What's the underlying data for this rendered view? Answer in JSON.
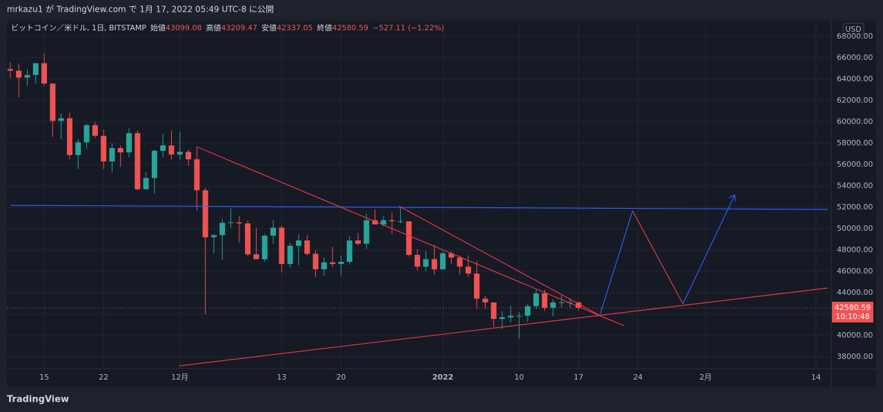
{
  "header": {
    "published": "mrkazu1 が TradingView.com で 1月 17, 2022 05:49 UTC-8 に公開"
  },
  "legend": {
    "symbol": "ビットコイン／米ドル, 1日, BITSTAMP",
    "open_label": "始値",
    "open": "43099.08",
    "high_label": "高値",
    "high": "43209.47",
    "low_label": "安値",
    "low": "42337.05",
    "close_label": "終値",
    "close": "42580.59",
    "change": "−527.11 (−1.22%)"
  },
  "currency": "USD",
  "countdown": "10:10:48",
  "footer": "TradingView",
  "chart_data": {
    "type": "candlestick",
    "up_color": "#26a69a",
    "down_color": "#ef5350",
    "grid": true,
    "x": [
      0,
      1,
      2,
      3,
      4,
      5,
      6,
      7,
      8,
      9,
      10,
      11,
      12,
      13,
      14,
      15,
      16,
      17,
      18,
      19,
      20,
      21,
      22,
      23,
      24,
      25,
      26,
      27,
      28,
      29,
      30,
      31,
      32,
      33,
      34,
      35,
      36,
      37,
      38,
      39,
      40,
      41,
      42,
      43,
      44,
      45,
      46,
      47,
      48,
      49,
      50,
      51,
      52,
      53,
      54,
      55,
      56,
      57,
      58,
      59,
      60,
      61,
      62,
      63,
      64,
      65,
      66,
      67
    ],
    "open": [
      64950,
      64800,
      64150,
      64400,
      65500,
      63600,
      60100,
      60350,
      56900,
      58100,
      59700,
      58700,
      56300,
      57550,
      57150,
      58950,
      53700,
      54750,
      57300,
      57800,
      56950,
      57200,
      56500,
      53600,
      49200,
      49400,
      50550,
      50600,
      50500,
      47600,
      47150,
      49350,
      50100,
      46700,
      48400,
      48900,
      47650,
      46200,
      46850,
      46700,
      46900,
      48900,
      48600,
      50800,
      50400,
      50800,
      50700,
      50700,
      47550,
      46450,
      47150,
      46200,
      47700,
      47300,
      46450,
      45800,
      43450,
      43100,
      41550,
      41700,
      41850,
      41850,
      42750,
      43950,
      42600,
      43100,
      43100,
      43099.08
    ],
    "high": [
      65600,
      65450,
      64950,
      65500,
      66400,
      63600,
      60800,
      60900,
      58400,
      59850,
      60000,
      59300,
      58000,
      57800,
      59400,
      59200,
      55300,
      57400,
      58900,
      59200,
      59100,
      57400,
      57600,
      53850,
      49500,
      50900,
      51900,
      51200,
      50800,
      50100,
      49500,
      50800,
      50300,
      48700,
      49500,
      49400,
      48000,
      47300,
      48300,
      47500,
      49300,
      49600,
      51400,
      51800,
      51200,
      51500,
      52000,
      50700,
      48100,
      47900,
      48500,
      47900,
      47900,
      47500,
      47500,
      47000,
      43700,
      43100,
      42300,
      42800,
      42200,
      43000,
      44300,
      44300,
      43400,
      43800,
      43500,
      43209.47
    ],
    "low": [
      64100,
      62300,
      63400,
      63600,
      63400,
      58600,
      58400,
      56500,
      55600,
      57500,
      58500,
      55600,
      55300,
      55800,
      56700,
      53600,
      53700,
      53300,
      56700,
      56500,
      56500,
      55900,
      51700,
      42000,
      47700,
      47100,
      50100,
      48700,
      47400,
      47300,
      46900,
      48600,
      45900,
      46400,
      46600,
      47500,
      45500,
      45600,
      46400,
      45600,
      46650,
      48450,
      48100,
      50500,
      50200,
      49500,
      50500,
      47400,
      46100,
      46000,
      45700,
      46200,
      46700,
      45700,
      45500,
      42500,
      42500,
      40800,
      40600,
      41200,
      39700,
      41300,
      42500,
      42300,
      41800,
      42600,
      42600,
      42337.05
    ],
    "close": [
      64800,
      64150,
      64400,
      65500,
      63600,
      60100,
      60350,
      56900,
      58100,
      59700,
      58700,
      56300,
      57550,
      57150,
      58950,
      53700,
      54750,
      57300,
      57800,
      56950,
      57200,
      56500,
      53600,
      49200,
      49400,
      50550,
      50600,
      50500,
      47600,
      47150,
      49350,
      50100,
      46700,
      48400,
      48900,
      47650,
      46200,
      46850,
      46700,
      46900,
      48900,
      48600,
      50800,
      50400,
      50800,
      50700,
      50700,
      47550,
      46450,
      47150,
      46200,
      47700,
      47300,
      46450,
      45800,
      43450,
      43100,
      41550,
      41700,
      41850,
      41850,
      42750,
      43950,
      42600,
      43100,
      43100,
      43100,
      42580.59
    ],
    "xlim": [
      -0.4,
      96.8
    ],
    "xticks": [
      {
        "value": 4,
        "label": "15"
      },
      {
        "value": 11,
        "label": "22"
      },
      {
        "value": 20,
        "label": "12月"
      },
      {
        "value": 32,
        "label": "13"
      },
      {
        "value": 39,
        "label": "20"
      },
      {
        "value": 51,
        "label": "2022"
      },
      {
        "value": 60,
        "label": "10"
      },
      {
        "value": 67,
        "label": "17"
      },
      {
        "value": 74,
        "label": "24"
      },
      {
        "value": 82,
        "label": "2月"
      },
      {
        "value": 95,
        "label": "14"
      }
    ],
    "ylim": [
      36903,
      69484
    ],
    "yticks": [
      {
        "value": 38000,
        "label": "38000.00"
      },
      {
        "value": 40000,
        "label": "40000.00"
      },
      {
        "value": 42000,
        "label": "42000.00"
      },
      {
        "value": 44000,
        "label": "44000.00"
      },
      {
        "value": 46000,
        "label": "46000.00"
      },
      {
        "value": 48000,
        "label": "48000.00"
      },
      {
        "value": 50000,
        "label": "50000.00"
      },
      {
        "value": 52000,
        "label": "52000.00"
      },
      {
        "value": 54000,
        "label": "54000.00"
      },
      {
        "value": 56000,
        "label": "56000.00"
      },
      {
        "value": 58000,
        "label": "58000.00"
      },
      {
        "value": 60000,
        "label": "60000.00"
      },
      {
        "value": 62000,
        "label": "62000.00"
      },
      {
        "value": 64000,
        "label": "64000.00"
      },
      {
        "value": 66000,
        "label": "66000.00"
      },
      {
        "value": 68000,
        "label": "68000.00"
      }
    ]
  }
}
